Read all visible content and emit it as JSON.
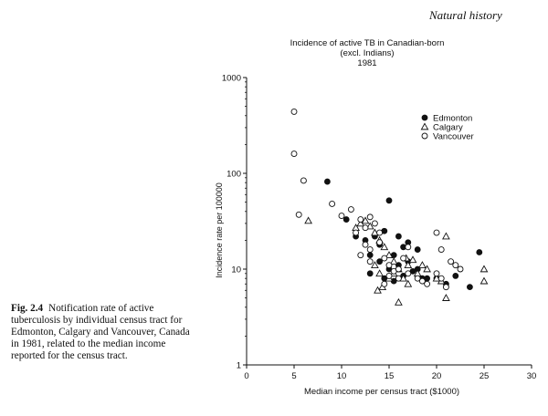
{
  "page": {
    "running_head": "Natural history",
    "caption_number": "Fig. 2.4",
    "caption_text": "Notification rate of active tuberculosis by individual census tract for Edmonton, Calgary and Vancouver, Canada in 1981, related to the median income reported for the census tract."
  },
  "chart_data": {
    "type": "scatter",
    "title_lines": [
      "Incidence of active TB in Canadian-born",
      "(excl. Indians)",
      "1981"
    ],
    "xlabel": "Median income per census tract ($1000)",
    "ylabel": "Incidence rate per 100000",
    "xlim": [
      0,
      30
    ],
    "ylim": [
      1,
      1000
    ],
    "y_scale": "log",
    "x_ticks": [
      0,
      5,
      10,
      15,
      20,
      25,
      30
    ],
    "y_ticks": [
      1,
      10,
      100,
      1000
    ],
    "y_tick_labels": [
      "1",
      "10",
      "100",
      "1000"
    ],
    "grid": false,
    "legend_position": "top-right",
    "series": [
      {
        "name": "Edmonton",
        "marker": "filled-circle",
        "points": [
          [
            8.5,
            82
          ],
          [
            10.5,
            33
          ],
          [
            11.5,
            22
          ],
          [
            12.5,
            20
          ],
          [
            13,
            14
          ],
          [
            13.5,
            22
          ],
          [
            14,
            18
          ],
          [
            14.5,
            25
          ],
          [
            15,
            52
          ],
          [
            15.5,
            14
          ],
          [
            16,
            22
          ],
          [
            16.5,
            17
          ],
          [
            17,
            19
          ],
          [
            18,
            16
          ],
          [
            13,
            9
          ],
          [
            14,
            12
          ],
          [
            15,
            10
          ],
          [
            16,
            11
          ],
          [
            17,
            12
          ],
          [
            18,
            10
          ],
          [
            19,
            8
          ],
          [
            20,
            8
          ],
          [
            21,
            7
          ],
          [
            22,
            8.5
          ],
          [
            23.5,
            6.5
          ],
          [
            24.5,
            15
          ],
          [
            15.5,
            7.5
          ],
          [
            16.5,
            8.5
          ],
          [
            17.5,
            9.5
          ],
          [
            18.5,
            8
          ],
          [
            14.5,
            8
          ]
        ]
      },
      {
        "name": "Calgary",
        "marker": "open-triangle",
        "points": [
          [
            6.5,
            32
          ],
          [
            11.5,
            27
          ],
          [
            12,
            30
          ],
          [
            12.5,
            32
          ],
          [
            13,
            28
          ],
          [
            13.5,
            24
          ],
          [
            14,
            20
          ],
          [
            14.5,
            17
          ],
          [
            15,
            14
          ],
          [
            15.5,
            12
          ],
          [
            13.5,
            11
          ],
          [
            14,
            9
          ],
          [
            15,
            8
          ],
          [
            15.5,
            9
          ],
          [
            16,
            10
          ],
          [
            16.5,
            8
          ],
          [
            17,
            11
          ],
          [
            17.5,
            12.5
          ],
          [
            18,
            9
          ],
          [
            18.5,
            11
          ],
          [
            19,
            10
          ],
          [
            20,
            8
          ],
          [
            20.5,
            7.5
          ],
          [
            21,
            5
          ],
          [
            21,
            22
          ],
          [
            13.8,
            6
          ],
          [
            14.3,
            6.5
          ],
          [
            16,
            4.5
          ],
          [
            17,
            7
          ],
          [
            25,
            10
          ],
          [
            25,
            7.5
          ],
          [
            16.8,
            13
          ]
        ]
      },
      {
        "name": "Vancouver",
        "marker": "open-circle",
        "points": [
          [
            5,
            440
          ],
          [
            5,
            160
          ],
          [
            6,
            84
          ],
          [
            5.5,
            37
          ],
          [
            9,
            48
          ],
          [
            10,
            36
          ],
          [
            11,
            42
          ],
          [
            12,
            33
          ],
          [
            12.5,
            27
          ],
          [
            13,
            35
          ],
          [
            13.5,
            30
          ],
          [
            14,
            24
          ],
          [
            11.5,
            24
          ],
          [
            12.5,
            18
          ],
          [
            13,
            16
          ],
          [
            14,
            19
          ],
          [
            14.5,
            13
          ],
          [
            15,
            11
          ],
          [
            15.5,
            9.5
          ],
          [
            16,
            10
          ],
          [
            16.5,
            13
          ],
          [
            17,
            17
          ],
          [
            15,
            8.5
          ],
          [
            16,
            8
          ],
          [
            17,
            9
          ],
          [
            18,
            8
          ],
          [
            19,
            7
          ],
          [
            20,
            9
          ],
          [
            20.5,
            16
          ],
          [
            20,
            24
          ],
          [
            21.5,
            12
          ],
          [
            22,
            11
          ],
          [
            22.5,
            10
          ],
          [
            21,
            6.5
          ],
          [
            13,
            12
          ],
          [
            12,
            14
          ],
          [
            14.5,
            7
          ],
          [
            18.5,
            7.5
          ],
          [
            20.5,
            8
          ]
        ]
      }
    ]
  }
}
